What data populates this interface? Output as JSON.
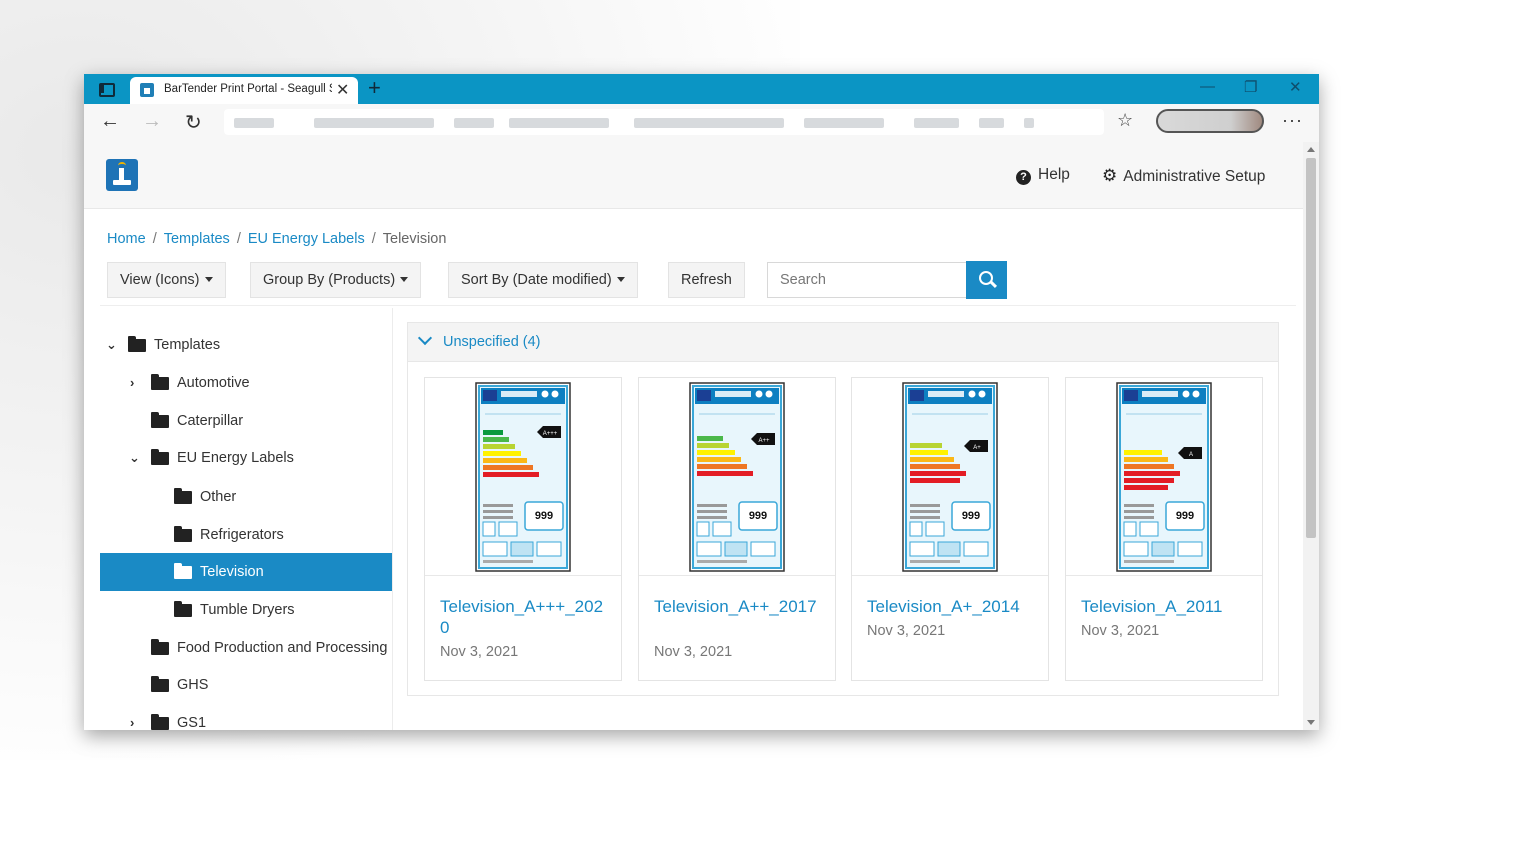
{
  "browser": {
    "tab_title": "BarTender Print Portal - Seagull S",
    "tab_close": "✕",
    "new_tab": "+",
    "window_controls": {
      "minimize": "—",
      "restore": "❐",
      "close": "✕"
    },
    "nav": {
      "back": "←",
      "forward": "→",
      "reload": "↻"
    },
    "favorites_icon": "☆",
    "more": "···"
  },
  "header": {
    "help_label": "Help",
    "admin_label": "Administrative Setup",
    "icons": {
      "logo": "bartender-logo-icon",
      "help": "question-circle-icon",
      "admin": "gears-icon"
    }
  },
  "breadcrumb": {
    "items": [
      "Home",
      "Templates",
      "EU Energy Labels"
    ],
    "separator": "/",
    "current": "Television"
  },
  "toolbar": {
    "view_label": "View (Icons)",
    "group_label": "Group By (Products)",
    "sort_label": "Sort By (Date modified)",
    "refresh_label": "Refresh",
    "search_placeholder": "Search"
  },
  "tree": {
    "items": [
      {
        "label": "Templates",
        "expanded": true
      },
      {
        "label": "Automotive",
        "expanded": false
      },
      {
        "label": "Caterpillar"
      },
      {
        "label": "EU Energy Labels",
        "expanded": true
      },
      {
        "label": "Other"
      },
      {
        "label": "Refrigerators"
      },
      {
        "label": "Television",
        "selected": true
      },
      {
        "label": "Tumble Dryers"
      },
      {
        "label": "Food Production and Processing"
      },
      {
        "label": "GHS"
      },
      {
        "label": "GS1",
        "expanded": false
      }
    ],
    "chevron_down": "⌄",
    "chevron_right": "›"
  },
  "group": {
    "title": "Unspecified (4)"
  },
  "cards": [
    {
      "name": "Television_A+++_2020",
      "date": "Nov 3, 2021",
      "label_rating": "A+++",
      "label_number": "999"
    },
    {
      "name": "Television_A++_2017",
      "date": "Nov 3, 2021",
      "label_rating": "A++",
      "label_number": "999"
    },
    {
      "name": "Television_A+_2014",
      "date": "Nov 3, 2021",
      "label_rating": "A+",
      "label_number": "999"
    },
    {
      "name": "Television_A_2011",
      "date": "Nov 3, 2021",
      "label_rating": "A",
      "label_number": "999"
    }
  ],
  "colors": {
    "accent": "#1a8ac5",
    "browser_bar": "#0b95c4",
    "selected_bg": "#1a8ac5"
  }
}
